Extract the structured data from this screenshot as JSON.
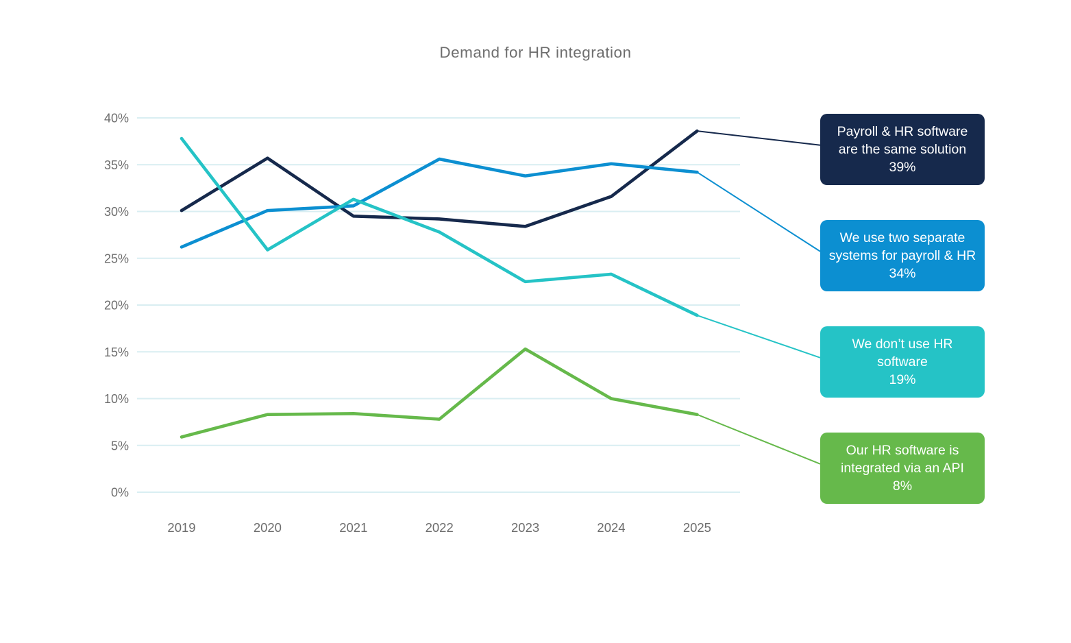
{
  "chart_data": {
    "type": "line",
    "title": "Demand for HR integration",
    "x_labels": [
      "2019",
      "2020",
      "2021",
      "2022",
      "2023",
      "2024",
      "2025"
    ],
    "y_ticks": [
      "0%",
      "5%",
      "10%",
      "15%",
      "20%",
      "25%",
      "30%",
      "35%",
      "40%"
    ],
    "y_tick_step": 5,
    "ylim": [
      0,
      40
    ],
    "grid": "horizontal",
    "legend_position": "right callout boxes linked by leader lines",
    "series": [
      {
        "key": "payroll-hr-same-solution",
        "label": "Payroll & HR software are the same solution",
        "label_lines": [
          "Payroll & HR software",
          "are the same solution"
        ],
        "pct": "39%",
        "color": "#16294c",
        "values": [
          30.1,
          35.7,
          29.5,
          29.2,
          28.4,
          31.6,
          38.6
        ]
      },
      {
        "key": "two-separate-systems",
        "label": "We use two separate systems for payroll & HR",
        "label_lines": [
          "We use two separate",
          "systems for payroll & HR"
        ],
        "pct": "34%",
        "color": "#0c8fd1",
        "values": [
          26.2,
          30.1,
          30.6,
          35.6,
          33.8,
          35.1,
          34.2
        ]
      },
      {
        "key": "dont-use-hr-software",
        "label": "We don’t use HR software",
        "label_lines": [
          "We don’t use HR",
          "software"
        ],
        "pct": "19%",
        "color": "#25c3c6",
        "values": [
          37.8,
          25.9,
          31.3,
          27.8,
          22.5,
          23.3,
          18.9
        ]
      },
      {
        "key": "integrated-via-api",
        "label": "Our HR software is integrated via an API",
        "label_lines": [
          "Our HR software is",
          "integrated via an API"
        ],
        "pct": "8%",
        "color": "#66b94b",
        "values": [
          5.9,
          8.3,
          8.4,
          7.8,
          15.3,
          10.0,
          8.3
        ]
      }
    ]
  },
  "colors": {
    "background": "#ffffff",
    "gridline": "#d9eef2",
    "axis_text": "#6d6d6d",
    "title_text": "#6e6e6e",
    "callout_text": "#ffffff"
  }
}
